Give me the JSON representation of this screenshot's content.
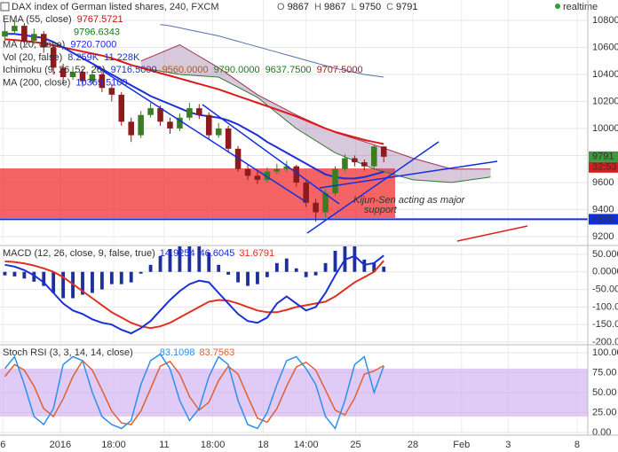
{
  "chart_data": [
    {
      "type": "candlestick",
      "title": "DAX index of German listed shares, 240, FXCM",
      "ohlc_labels": [
        "O",
        "H",
        "L",
        "C"
      ],
      "open": [
        10680,
        10720,
        10760,
        10650,
        10700,
        10600,
        10450,
        10380,
        10420,
        10350,
        10400,
        10300,
        10250,
        10050,
        9950,
        10100,
        10150,
        10050,
        10000,
        10080,
        10150,
        10100,
        9950,
        10000,
        9850,
        9700,
        9650,
        9620,
        9680,
        9700,
        9720,
        9600,
        9450,
        9380,
        9520,
        9700,
        9780,
        9750,
        9720,
        9867
      ],
      "high": [
        10790,
        10800,
        10780,
        10740,
        10720,
        10620,
        10480,
        10460,
        10440,
        10430,
        10420,
        10330,
        10270,
        10080,
        10130,
        10190,
        10170,
        10080,
        10110,
        10190,
        10180,
        10120,
        10040,
        10020,
        9870,
        9730,
        9690,
        9710,
        9740,
        9760,
        9730,
        9620,
        9480,
        9550,
        9720,
        9810,
        9800,
        9770,
        9880,
        9867
      ],
      "low": [
        10650,
        10700,
        10620,
        10620,
        10560,
        10400,
        10330,
        10360,
        10310,
        10330,
        10270,
        10200,
        10020,
        9900,
        9930,
        10080,
        10020,
        9960,
        9980,
        10060,
        10070,
        9920,
        9930,
        9820,
        9680,
        9620,
        9590,
        9600,
        9660,
        9680,
        9570,
        9420,
        9310,
        9340,
        9500,
        9680,
        9720,
        9690,
        9700,
        9750
      ],
      "close": [
        10720,
        10760,
        10650,
        10700,
        10600,
        10450,
        10380,
        10420,
        10350,
        10400,
        10300,
        10250,
        10050,
        9950,
        10100,
        10150,
        10050,
        10000,
        10080,
        10150,
        10100,
        9950,
        10000,
        9850,
        9700,
        9650,
        9620,
        9680,
        9700,
        9720,
        9600,
        9450,
        9380,
        9520,
        9700,
        9780,
        9750,
        9720,
        9867,
        9791
      ],
      "up_color": "#3b7d23",
      "down_color": "#8e1b1b",
      "series": [
        {
          "color": "#e01818",
          "width": 2,
          "values": [
            10660,
            10655,
            10648,
            10640,
            10630,
            10615,
            10600,
            10585,
            10570,
            10555,
            10540,
            10520,
            10495,
            10470,
            10450,
            10430,
            10410,
            10390,
            10370,
            10350,
            10330,
            10310,
            10290,
            10265,
            10240,
            10215,
            10190,
            10165,
            10140,
            10115,
            10090,
            10060,
            10030,
            10000,
            9975,
            9955,
            9935,
            9915,
            9900,
            9885
          ]
        },
        {
          "color": "#1c2fd6",
          "width": 2,
          "values": [
            10700,
            10700,
            10690,
            10680,
            10670,
            10640,
            10600,
            10560,
            10520,
            10480,
            10440,
            10400,
            10360,
            10320,
            10280,
            10240,
            10210,
            10180,
            10150,
            10120,
            10100,
            10090,
            10080,
            10060,
            10030,
            9990,
            9950,
            9900,
            9860,
            9820,
            9780,
            9740,
            9700,
            9660,
            9640,
            9630,
            9630,
            9640,
            9660,
            9680
          ]
        },
        {
          "color": "#5571a8",
          "width": 1,
          "values": [
            null,
            null,
            null,
            null,
            null,
            null,
            null,
            null,
            null,
            null,
            null,
            null,
            null,
            null,
            null,
            null,
            10770,
            10760,
            10745,
            10730,
            10715,
            10700,
            10685,
            10665,
            10645,
            10625,
            10605,
            10585,
            10565,
            10545,
            10525,
            10505,
            10485,
            10465,
            10445,
            10430,
            10415,
            10400,
            10390,
            10380
          ]
        }
      ],
      "cloud": {
        "x": [
          14,
          18,
          22,
          26,
          30,
          34,
          38,
          42,
          46,
          50
        ],
        "span_a": [
          10500,
          10620,
          10450,
          10250,
          10100,
          9970,
          9880,
          9780,
          9700,
          9700
        ],
        "span_b": [
          10450,
          10400,
          10380,
          10230,
          10000,
          9820,
          9700,
          9620,
          9600,
          9640
        ],
        "color": "#7b4a8c"
      },
      "legend": [
        {
          "name": "EMA (55, close)",
          "values": [
            "9767.5721"
          ],
          "colors": [
            "#d01010"
          ]
        },
        {
          "values": [
            "9796.6343"
          ],
          "colors": [
            "#1a7a1a"
          ]
        },
        {
          "name": "MA (20, close)",
          "values": [
            "9720.7000"
          ],
          "colors": [
            "#1c2fd6"
          ]
        },
        {
          "name": "Vol (20, false)",
          "values": [
            "8.259K",
            "11.228K"
          ],
          "colors": [
            "#1c2fd6",
            "#1c2fd6"
          ]
        },
        {
          "name": "Ichimoku (9, 26, 52, 26)",
          "values": [
            "9716.5000",
            "9560.0000",
            "9790.0000",
            "9637.7500",
            "9707.5000"
          ],
          "colors": [
            "#1c2fd6",
            "#c05a00",
            "#1a7a1a",
            "#1a7a1a",
            "#c01010"
          ]
        },
        {
          "name": "MA (200, close)",
          "values": [
            "10369.5100"
          ],
          "colors": [
            "#1c2fd6"
          ]
        }
      ],
      "annotation": [
        "Kijun-Sen acting as major",
        "support"
      ],
      "level": 9328,
      "level_color": "#1030e0",
      "last_color": "#3a9a3a",
      "countdown": "32:53",
      "countdown_color": "#d02020",
      "realtime": "realtime",
      "ylim": [
        9147,
        10951
      ],
      "yticks": [
        10800,
        10600,
        10400,
        10200,
        10000,
        9800,
        9600,
        9400,
        9200
      ]
    },
    {
      "type": "macd",
      "title": "MACD (12, 26, close, 9, false, true)",
      "macd": [
        20,
        15,
        5,
        -10,
        -30,
        -60,
        -90,
        -110,
        -120,
        -135,
        -145,
        -150,
        -165,
        -175,
        -160,
        -140,
        -110,
        -80,
        -55,
        -35,
        -25,
        -30,
        -60,
        -90,
        -120,
        -140,
        -145,
        -130,
        -90,
        -70,
        -90,
        -110,
        -100,
        -60,
        -10,
        35,
        45,
        20,
        25,
        46.6045
      ],
      "signal": [
        30,
        28,
        24,
        18,
        10,
        0,
        -15,
        -35,
        -55,
        -75,
        -95,
        -115,
        -130,
        -145,
        -155,
        -160,
        -155,
        -145,
        -130,
        -115,
        -100,
        -85,
        -80,
        -82,
        -90,
        -100,
        -110,
        -115,
        -115,
        -108,
        -100,
        -95,
        -90,
        -85,
        -70,
        -50,
        -30,
        -15,
        0,
        31.6791
      ],
      "histogram": [
        -10,
        -13,
        -19,
        -28,
        -40,
        -60,
        -75,
        -75,
        -65,
        -60,
        -50,
        -35,
        -35,
        -30,
        -5,
        20,
        45,
        65,
        75,
        80,
        75,
        55,
        20,
        -8,
        -30,
        -40,
        -35,
        -15,
        25,
        38,
        10,
        -15,
        -10,
        25,
        60,
        85,
        75,
        35,
        25,
        14.9254
      ],
      "macd_color": "#1c2fd6",
      "signal_color": "#e03020",
      "histogram_color": "#1c2f9a",
      "ylim": [
        -205,
        70
      ],
      "yticks": [
        {
          "value": 50,
          "label": "50.0000"
        },
        {
          "value": 0,
          "label": "0.0000"
        },
        {
          "value": -50,
          "label": "-50.0000"
        },
        {
          "value": -100,
          "label": "-100.0000"
        },
        {
          "value": -150,
          "label": "-150.0000"
        },
        {
          "value": -200,
          "label": "-200.0000"
        }
      ]
    },
    {
      "type": "stoch_rsi",
      "title": "Stoch RSI (3, 3, 14, 14, close)",
      "k": [
        80,
        95,
        60,
        20,
        10,
        30,
        85,
        95,
        90,
        50,
        20,
        10,
        5,
        15,
        60,
        90,
        98,
        80,
        40,
        15,
        30,
        70,
        95,
        85,
        40,
        10,
        5,
        25,
        60,
        90,
        95,
        80,
        60,
        20,
        5,
        40,
        85,
        95,
        50,
        83.1098
      ],
      "d": [
        70,
        85,
        78,
        58,
        30,
        20,
        42,
        70,
        90,
        78,
        53,
        27,
        12,
        10,
        27,
        55,
        83,
        89,
        73,
        45,
        28,
        38,
        65,
        83,
        73,
        45,
        18,
        13,
        30,
        58,
        82,
        88,
        78,
        53,
        28,
        22,
        43,
        73,
        77,
        83.7563
      ],
      "k_color": "#2f8fe8",
      "d_color": "#e06030",
      "band": [
        20,
        80
      ],
      "band_color": "#c9a8f0",
      "ylim": [
        -2.2,
        108.7
      ],
      "yticks": [
        {
          "value": 100,
          "label": "100.00"
        },
        {
          "value": 75,
          "label": "75.00"
        },
        {
          "value": 50,
          "label": "50.00"
        },
        {
          "value": 25,
          "label": "25.00"
        },
        {
          "value": 0,
          "label": "0.00"
        }
      ],
      "xlim": [
        -0.5,
        60
      ],
      "xticks": [
        {
          "value": -0.2,
          "label": "6"
        },
        {
          "value": 5.7,
          "label": "2016"
        },
        {
          "value": 11.2,
          "label": "18:00"
        },
        {
          "value": 16.4,
          "label": "11"
        },
        {
          "value": 21.4,
          "label": "18:00"
        },
        {
          "value": 26.6,
          "label": "18"
        },
        {
          "value": 31.0,
          "label": "14:00"
        },
        {
          "value": 36.1,
          "label": "25"
        },
        {
          "value": 42.0,
          "label": "28"
        },
        {
          "value": 47.0,
          "label": "Feb"
        },
        {
          "value": 51.8,
          "label": "3"
        },
        {
          "value": 58.9,
          "label": "8"
        }
      ]
    }
  ]
}
